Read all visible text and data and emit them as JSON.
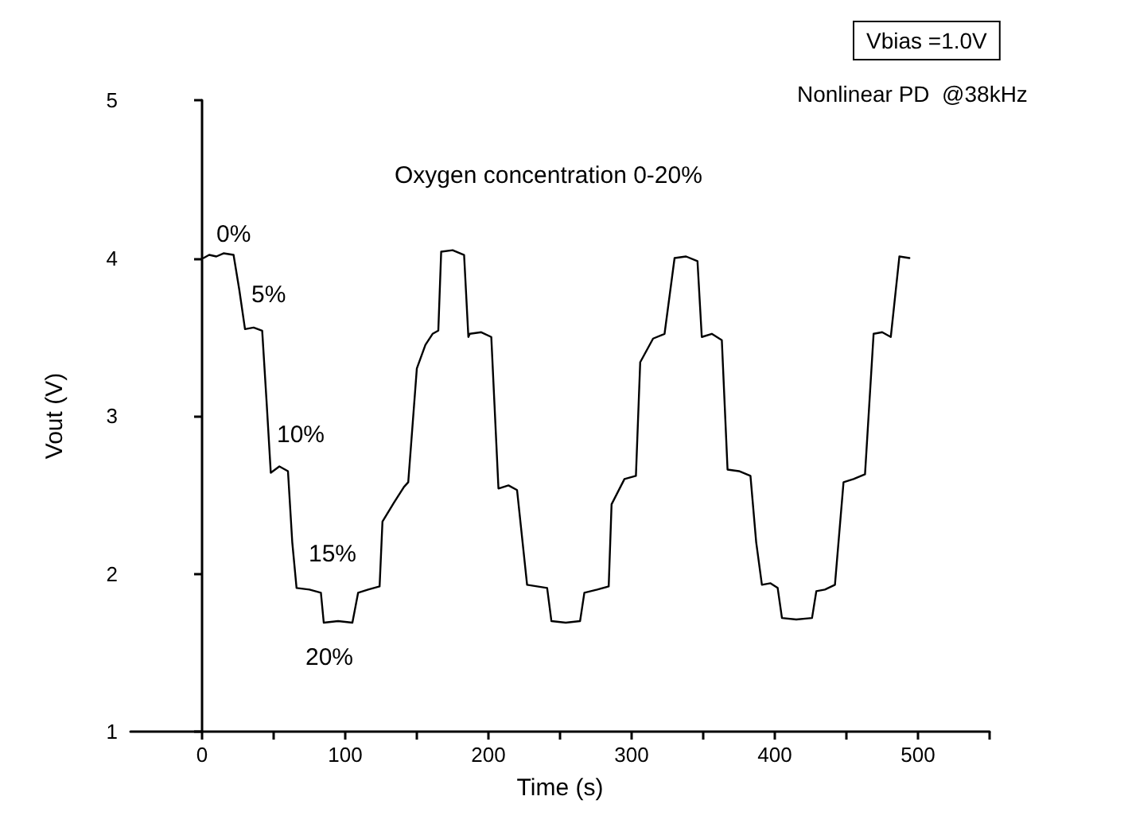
{
  "chart_data": {
    "type": "line",
    "title": "Oxygen concentration 0-20%",
    "xlabel": "Time (s)",
    "ylabel": "Vout (V)",
    "annotations": [
      "Vbias =1.0V",
      "Nonlinear PD  @38kHz",
      "0%",
      "5%",
      "10%",
      "15%",
      "20%"
    ],
    "xlim": [
      -50,
      550
    ],
    "xticks": [
      0,
      {
        "value": 50,
        "label": null
      },
      100,
      {
        "value": 150,
        "label": null
      },
      200,
      {
        "value": 250,
        "label": null
      },
      300,
      {
        "value": 350,
        "label": null
      },
      400,
      {
        "value": 450,
        "label": null
      },
      500,
      {
        "value": 550,
        "label": null
      }
    ],
    "ylim": [
      1,
      5
    ],
    "yticks": [
      1,
      2,
      3,
      4,
      5
    ],
    "marker": "none",
    "line_style": "solid",
    "series": [
      {
        "color": "#000000",
        "x": [
          1,
          5,
          10,
          15,
          22,
          26,
          30,
          36,
          42,
          45,
          48,
          54,
          60,
          63,
          66,
          75,
          83,
          85,
          95,
          105,
          109,
          116,
          124,
          126,
          134,
          141,
          144,
          150,
          156,
          161,
          165,
          167,
          175,
          183,
          186,
          187,
          195,
          202,
          207,
          214,
          220,
          227,
          234,
          241,
          244,
          254,
          264,
          267,
          276,
          284,
          286,
          295,
          303,
          306,
          315,
          323,
          330,
          338,
          346,
          349,
          356,
          363,
          367,
          375,
          383,
          387,
          391,
          397,
          402,
          405,
          415,
          426,
          429,
          435,
          442,
          448,
          455,
          463,
          469,
          475,
          481,
          487,
          494
        ],
        "values": [
          4.0,
          4.02,
          4.01,
          4.03,
          4.02,
          3.8,
          3.55,
          3.56,
          3.54,
          3.1,
          2.64,
          2.68,
          2.65,
          2.2,
          1.91,
          1.9,
          1.88,
          1.69,
          1.7,
          1.69,
          1.88,
          1.9,
          1.92,
          2.33,
          2.45,
          2.55,
          2.58,
          3.3,
          3.45,
          3.52,
          3.54,
          4.04,
          4.05,
          4.02,
          3.5,
          3.52,
          3.53,
          3.5,
          2.54,
          2.56,
          2.53,
          1.93,
          1.92,
          1.91,
          1.7,
          1.69,
          1.7,
          1.88,
          1.9,
          1.92,
          2.44,
          2.6,
          2.62,
          3.34,
          3.49,
          3.52,
          4.0,
          4.01,
          3.98,
          3.5,
          3.52,
          3.48,
          2.66,
          2.65,
          2.62,
          2.2,
          1.93,
          1.94,
          1.91,
          1.72,
          1.71,
          1.72,
          1.89,
          1.9,
          1.93,
          2.58,
          2.6,
          2.63,
          3.52,
          3.53,
          3.5,
          4.01,
          4.0
        ]
      }
    ]
  }
}
